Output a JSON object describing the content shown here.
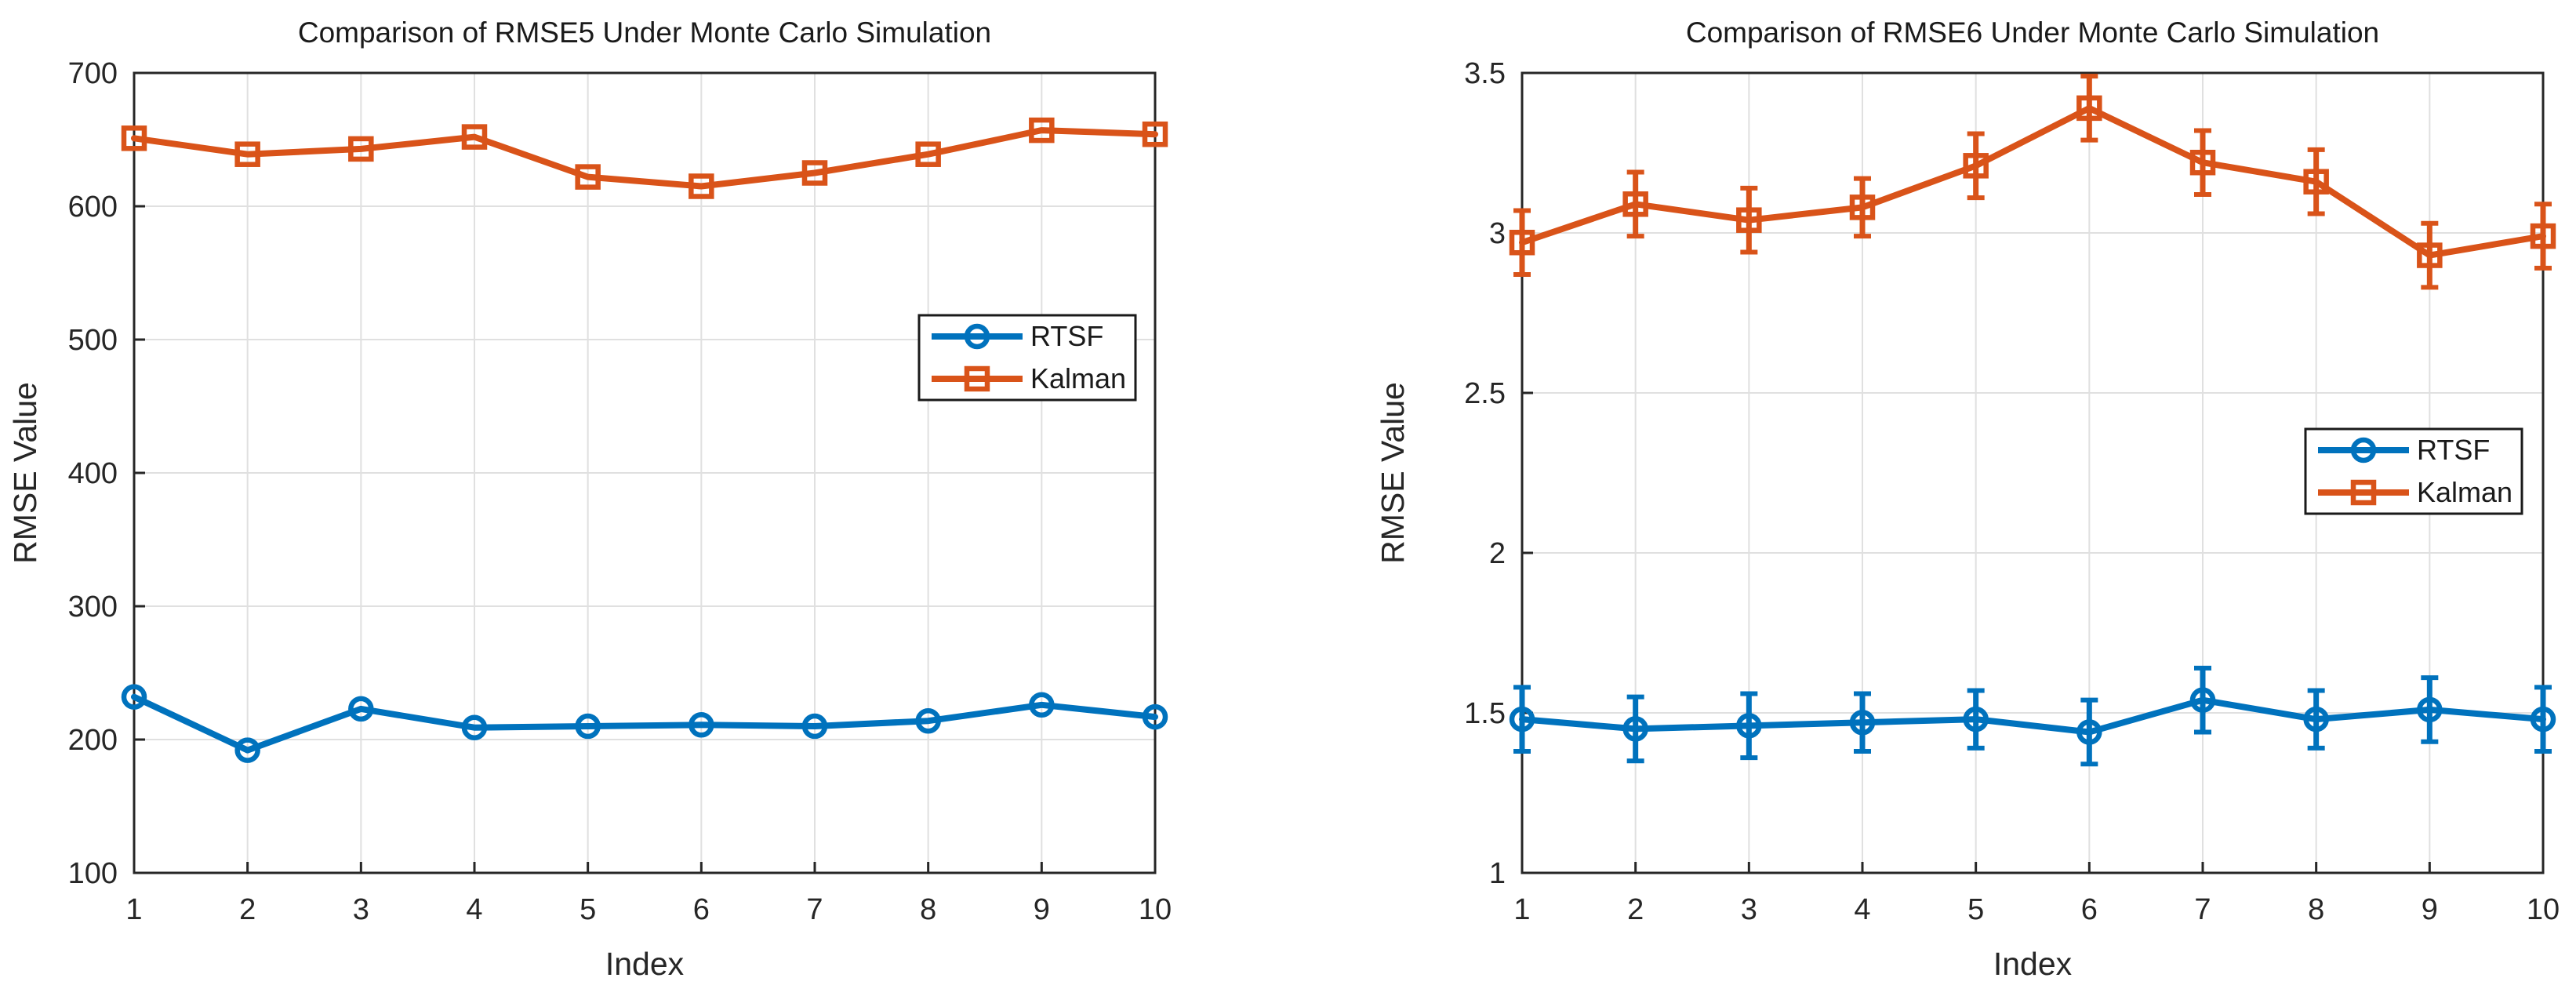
{
  "figure": {
    "background": "#ffffff",
    "axis_color": "#262626",
    "grid_color": "#e0e0e0",
    "legend_border_color": "#1a1a1a",
    "legend_background": "#ffffff"
  },
  "chart_data": [
    {
      "type": "line",
      "title": "Comparison of RMSE5 Under Monte Carlo Simulation",
      "xlabel": "Index",
      "ylabel": "RMSE Value",
      "x": [
        1,
        2,
        3,
        4,
        5,
        6,
        7,
        8,
        9,
        10
      ],
      "xticks": [
        1,
        2,
        3,
        4,
        5,
        6,
        7,
        8,
        9,
        10
      ],
      "xlim": [
        1,
        10
      ],
      "ylim": [
        100,
        700
      ],
      "yticks": [
        100,
        200,
        300,
        400,
        500,
        600,
        700
      ],
      "grid": true,
      "legend": [
        "RTSF",
        "Kalman"
      ],
      "series": [
        {
          "name": "RTSF",
          "color": "#0072BD",
          "marker": "circle",
          "values": [
            232,
            192,
            223,
            209,
            210,
            211,
            210,
            214,
            226,
            217
          ]
        },
        {
          "name": "Kalman",
          "color": "#D95319",
          "marker": "square",
          "values": [
            651,
            639,
            643,
            652,
            622,
            615,
            625,
            639,
            657,
            654
          ]
        }
      ]
    },
    {
      "type": "line",
      "title": "Comparison of RMSE6 Under Monte Carlo Simulation",
      "xlabel": "Index",
      "ylabel": "RMSE Value",
      "x": [
        1,
        2,
        3,
        4,
        5,
        6,
        7,
        8,
        9,
        10
      ],
      "xticks": [
        1,
        2,
        3,
        4,
        5,
        6,
        7,
        8,
        9,
        10
      ],
      "xlim": [
        1,
        10
      ],
      "ylim": [
        1,
        3.5
      ],
      "yticks": [
        1,
        1.5,
        2,
        2.5,
        3,
        3.5
      ],
      "grid": true,
      "legend": [
        "RTSF",
        "Kalman"
      ],
      "series": [
        {
          "name": "RTSF",
          "color": "#0072BD",
          "marker": "circle",
          "values": [
            1.48,
            1.45,
            1.46,
            1.47,
            1.48,
            1.44,
            1.54,
            1.48,
            1.51,
            1.48
          ],
          "yerr": [
            0.1,
            0.1,
            0.1,
            0.09,
            0.09,
            0.1,
            0.1,
            0.09,
            0.1,
            0.1
          ]
        },
        {
          "name": "Kalman",
          "color": "#D95319",
          "marker": "square",
          "values": [
            2.97,
            3.09,
            3.04,
            3.08,
            3.21,
            3.39,
            3.22,
            3.16,
            2.93,
            2.99
          ],
          "yerr": [
            0.1,
            0.1,
            0.1,
            0.09,
            0.1,
            0.1,
            0.1,
            0.1,
            0.1,
            0.1
          ]
        }
      ]
    }
  ]
}
